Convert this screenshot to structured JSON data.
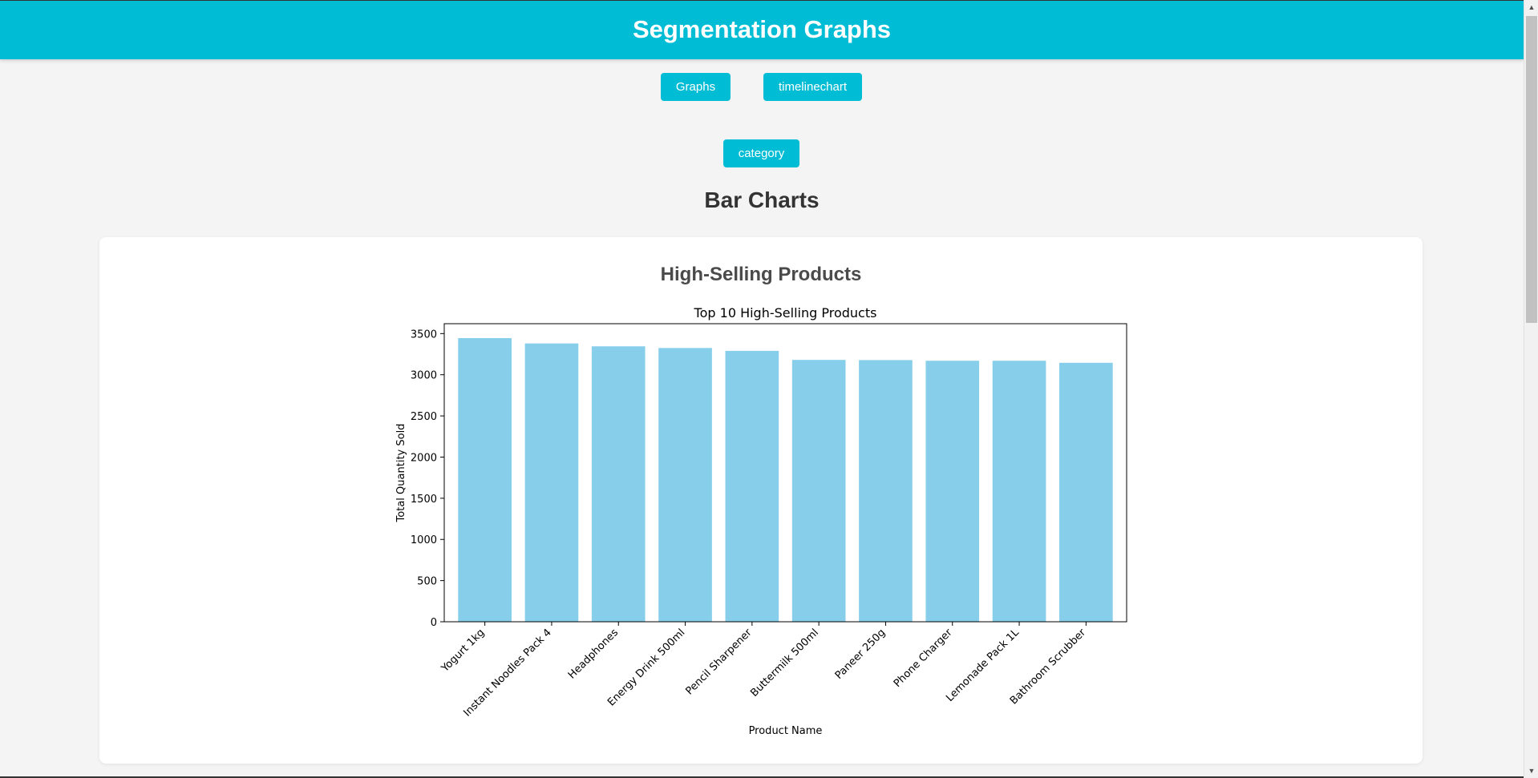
{
  "header": {
    "title": "Segmentation Graphs"
  },
  "nav": {
    "graphs_label": "Graphs",
    "timeline_label": "timelinechart",
    "category_label": "category"
  },
  "section": {
    "title": "Bar Charts"
  },
  "card": {
    "title": "High-Selling Products"
  },
  "colors": {
    "accent": "#00bcd4",
    "bar": "#87ceeb"
  },
  "chart_data": {
    "type": "bar",
    "title": "Top 10 High-Selling Products",
    "xlabel": "Product Name",
    "ylabel": "Total Quantity Sold",
    "ylim": [
      0,
      3620
    ],
    "yticks": [
      0,
      500,
      1000,
      1500,
      2000,
      2500,
      3000,
      3500
    ],
    "categories": [
      "Yogurt 1kg",
      "Instant Noodles Pack 4",
      "Headphones",
      "Energy Drink 500ml",
      "Pencil Sharpener",
      "Buttermilk 500ml",
      "Paneer 250g",
      "Phone Charger",
      "Lemonade Pack 1L",
      "Bathroom Scrubber"
    ],
    "values": [
      3445,
      3380,
      3345,
      3325,
      3290,
      3180,
      3178,
      3170,
      3170,
      3145
    ],
    "grid": false,
    "legend": false
  }
}
